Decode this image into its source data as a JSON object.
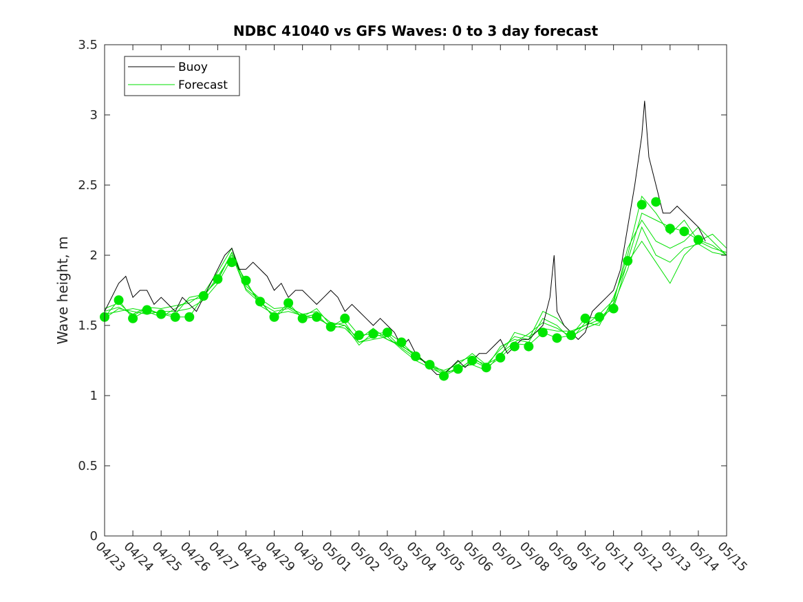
{
  "chart_data": {
    "type": "line",
    "title": "NDBC 41040 vs GFS Waves: 0 to 3 day forecast",
    "xlabel": "",
    "ylabel": "Wave height, m",
    "ylim": [
      0,
      3.5
    ],
    "yticks": [
      0,
      0.5,
      1,
      1.5,
      2,
      2.5,
      3,
      3.5
    ],
    "ytick_labels": [
      "0",
      "0.5",
      "1",
      "1.5",
      "2",
      "2.5",
      "3",
      "3.5"
    ],
    "xlim_days": [
      0,
      22
    ],
    "xtick_labels": [
      "04/23",
      "04/24",
      "04/25",
      "04/26",
      "04/27",
      "04/28",
      "04/29",
      "04/30",
      "05/01",
      "05/02",
      "05/03",
      "05/04",
      "05/05",
      "05/06",
      "05/07",
      "05/08",
      "05/09",
      "05/10",
      "05/11",
      "05/12",
      "05/13",
      "05/14",
      "05/15"
    ],
    "grid": false,
    "legend": {
      "placement": "top-left",
      "entries": [
        {
          "label": "Buoy",
          "color": "#000000"
        },
        {
          "label": "Forecast",
          "color": "#00e000"
        }
      ]
    },
    "colors": {
      "buoy": "#000000",
      "forecast": "#00e000",
      "markers": "#00e600"
    },
    "series": [
      {
        "name": "Buoy",
        "day": [
          0,
          0.25,
          0.5,
          0.75,
          1,
          1.25,
          1.5,
          1.75,
          2,
          2.25,
          2.5,
          2.75,
          3,
          3.25,
          3.5,
          3.75,
          4,
          4.25,
          4.5,
          4.75,
          5,
          5.25,
          5.5,
          5.75,
          6,
          6.25,
          6.5,
          6.75,
          7,
          7.25,
          7.5,
          7.75,
          8,
          8.25,
          8.5,
          8.75,
          9,
          9.25,
          9.5,
          9.75,
          10,
          10.25,
          10.5,
          10.75,
          11,
          11.25,
          11.5,
          11.75,
          12,
          12.25,
          12.5,
          12.75,
          13,
          13.25,
          13.5,
          13.75,
          14,
          14.25,
          14.5,
          14.75,
          15,
          15.25,
          15.5,
          15.75,
          15.9,
          16,
          16.25,
          16.5,
          16.75,
          17,
          17.25,
          17.5,
          17.75,
          18,
          18.25,
          18.5,
          18.75,
          19,
          19.1,
          19.25,
          19.5,
          19.75,
          20,
          20.25,
          20.5,
          20.75,
          21,
          21.25
        ],
        "values": [
          1.6,
          1.7,
          1.8,
          1.85,
          1.7,
          1.75,
          1.75,
          1.65,
          1.7,
          1.65,
          1.6,
          1.7,
          1.65,
          1.6,
          1.7,
          1.8,
          1.9,
          2.0,
          2.05,
          1.9,
          1.9,
          1.95,
          1.9,
          1.85,
          1.75,
          1.8,
          1.7,
          1.75,
          1.75,
          1.7,
          1.65,
          1.7,
          1.75,
          1.7,
          1.6,
          1.65,
          1.6,
          1.55,
          1.5,
          1.55,
          1.5,
          1.45,
          1.35,
          1.4,
          1.3,
          1.25,
          1.2,
          1.15,
          1.15,
          1.2,
          1.25,
          1.2,
          1.25,
          1.3,
          1.3,
          1.35,
          1.4,
          1.3,
          1.35,
          1.4,
          1.4,
          1.45,
          1.5,
          1.7,
          2.0,
          1.6,
          1.5,
          1.45,
          1.4,
          1.45,
          1.6,
          1.65,
          1.7,
          1.75,
          1.9,
          2.2,
          2.5,
          2.85,
          3.1,
          2.7,
          2.5,
          2.3,
          2.3,
          2.35,
          2.3,
          2.25,
          2.2,
          2.1
        ]
      },
      {
        "name": "Forecast",
        "day": [
          0,
          0.5,
          1,
          1.5,
          2,
          2.5,
          3,
          3.5,
          4,
          4.5,
          5,
          5.5,
          6,
          6.5,
          7,
          7.5,
          8,
          8.5,
          9,
          9.5,
          10,
          10.5,
          11,
          11.5,
          12,
          12.5,
          13,
          13.5,
          14,
          14.5,
          15,
          15.5,
          16,
          16.5,
          17,
          17.5,
          18,
          18.5,
          19,
          19.5,
          20,
          20.5,
          21,
          21.5,
          22
        ],
        "values": [
          1.56,
          1.68,
          1.55,
          1.61,
          1.58,
          1.56,
          1.56,
          1.71,
          1.83,
          2.02,
          1.8,
          1.67,
          1.56,
          1.66,
          1.55,
          1.56,
          1.49,
          1.55,
          1.43,
          1.44,
          1.45,
          1.38,
          1.28,
          1.22,
          1.14,
          1.19,
          1.25,
          1.2,
          1.27,
          1.37,
          1.36,
          1.45,
          1.41,
          1.43,
          1.55,
          1.56,
          1.62,
          1.96,
          2.3,
          2.25,
          2.2,
          2.17,
          2.11,
          2.07,
          2.0
        ]
      },
      {
        "name": "",
        "day": [
          0,
          0.5,
          1,
          1.5,
          2,
          2.5,
          3,
          3.5,
          4,
          4.5,
          5,
          5.5,
          6,
          6.5,
          7,
          7.5,
          8,
          8.5,
          9,
          9.5,
          10,
          10.5,
          11,
          11.5,
          12,
          12.5,
          13,
          13.5,
          14,
          14.5,
          15,
          15.5,
          16,
          16.5,
          17,
          17.5,
          18,
          18.5,
          19,
          19.5,
          20,
          20.5,
          21,
          21.5,
          22
        ],
        "values": [
          1.6,
          1.63,
          1.58,
          1.63,
          1.62,
          1.64,
          1.66,
          1.73,
          1.88,
          2.05,
          1.78,
          1.69,
          1.62,
          1.63,
          1.58,
          1.6,
          1.52,
          1.5,
          1.4,
          1.48,
          1.4,
          1.35,
          1.3,
          1.21,
          1.18,
          1.22,
          1.3,
          1.22,
          1.33,
          1.42,
          1.4,
          1.6,
          1.55,
          1.45,
          1.5,
          1.58,
          1.68,
          2.0,
          2.42,
          2.3,
          2.15,
          2.25,
          2.1,
          2.05,
          2.02
        ]
      },
      {
        "name": "",
        "day": [
          0,
          0.5,
          1,
          1.5,
          2,
          2.5,
          3,
          3.5,
          4,
          4.5,
          5,
          5.5,
          6,
          6.5,
          7,
          7.5,
          8,
          8.5,
          9,
          9.5,
          10,
          10.5,
          11,
          11.5,
          12,
          12.5,
          13,
          13.5,
          14,
          14.5,
          15,
          15.5,
          16,
          16.5,
          17,
          17.5,
          18,
          18.5,
          19,
          19.5,
          20,
          20.5,
          21,
          21.5,
          22
        ],
        "values": [
          1.55,
          1.62,
          1.6,
          1.58,
          1.6,
          1.6,
          1.62,
          1.68,
          1.8,
          1.98,
          1.82,
          1.64,
          1.58,
          1.6,
          1.57,
          1.55,
          1.5,
          1.52,
          1.38,
          1.4,
          1.42,
          1.33,
          1.25,
          1.2,
          1.15,
          1.2,
          1.22,
          1.18,
          1.3,
          1.38,
          1.44,
          1.52,
          1.48,
          1.42,
          1.48,
          1.52,
          1.65,
          1.9,
          2.2,
          2.0,
          1.95,
          2.05,
          2.08,
          2.02,
          2.0
        ]
      },
      {
        "name": "",
        "day": [
          0,
          0.5,
          1,
          1.5,
          2,
          2.5,
          3,
          3.5,
          4,
          4.5,
          5,
          5.5,
          6,
          6.5,
          7,
          7.5,
          8,
          8.5,
          9,
          9.5,
          10,
          10.5,
          11,
          11.5,
          12,
          12.5,
          13,
          13.5,
          14,
          14.5,
          15,
          15.5,
          16,
          16.5,
          17,
          17.5,
          18,
          18.5,
          19,
          19.5,
          20,
          20.5,
          21,
          21.5,
          22
        ],
        "values": [
          1.58,
          1.6,
          1.62,
          1.6,
          1.56,
          1.62,
          1.68,
          1.7,
          1.85,
          2.0,
          1.75,
          1.66,
          1.6,
          1.62,
          1.56,
          1.58,
          1.48,
          1.5,
          1.36,
          1.45,
          1.4,
          1.36,
          1.28,
          1.22,
          1.16,
          1.24,
          1.28,
          1.2,
          1.35,
          1.4,
          1.38,
          1.55,
          1.5,
          1.4,
          1.52,
          1.5,
          1.7,
          1.95,
          2.1,
          1.95,
          1.8,
          2.0,
          2.1,
          2.15,
          2.05
        ]
      },
      {
        "name": "",
        "day": [
          0,
          0.5,
          1,
          1.5,
          2,
          2.5,
          3,
          3.5,
          4,
          4.5,
          5,
          5.5,
          6,
          6.5,
          7,
          7.5,
          8,
          8.5,
          9,
          9.5,
          10,
          10.5,
          11,
          11.5,
          12,
          12.5,
          13,
          13.5,
          14,
          14.5,
          15,
          15.5,
          16,
          16.5,
          17,
          17.5,
          18,
          18.5,
          19,
          19.5,
          20,
          20.5,
          21,
          21.5,
          22
        ],
        "values": [
          1.62,
          1.66,
          1.57,
          1.62,
          1.58,
          1.58,
          1.7,
          1.72,
          1.82,
          2.02,
          1.76,
          1.68,
          1.55,
          1.64,
          1.56,
          1.62,
          1.5,
          1.48,
          1.38,
          1.42,
          1.44,
          1.34,
          1.27,
          1.23,
          1.17,
          1.18,
          1.26,
          1.22,
          1.28,
          1.45,
          1.42,
          1.48,
          1.46,
          1.46,
          1.5,
          1.54,
          1.66,
          2.05,
          2.25,
          2.1,
          2.05,
          2.1,
          2.2,
          2.1,
          2.0
        ]
      }
    ],
    "markers": {
      "name": "Forecast 00h",
      "day": [
        0,
        0.5,
        1,
        1.5,
        2,
        2.5,
        3,
        3.5,
        4,
        4.5,
        5,
        5.5,
        6,
        6.5,
        7,
        7.5,
        8,
        8.5,
        9,
        9.5,
        10,
        10.5,
        11,
        11.5,
        12,
        12.5,
        13,
        13.5,
        14,
        14.5,
        15,
        15.5,
        16,
        16.5,
        17,
        17.5,
        18,
        18.5,
        19,
        19.5,
        20,
        20.5,
        21
      ],
      "values": [
        1.56,
        1.68,
        1.55,
        1.61,
        1.58,
        1.56,
        1.56,
        1.71,
        1.83,
        1.95,
        1.82,
        1.67,
        1.56,
        1.66,
        1.55,
        1.56,
        1.49,
        1.55,
        1.43,
        1.44,
        1.45,
        1.38,
        1.28,
        1.22,
        1.14,
        1.19,
        1.25,
        1.2,
        1.27,
        1.35,
        1.35,
        1.45,
        1.41,
        1.43,
        1.55,
        1.56,
        1.62,
        1.96,
        2.36,
        2.38,
        2.19,
        2.17,
        2.11
      ]
    }
  }
}
